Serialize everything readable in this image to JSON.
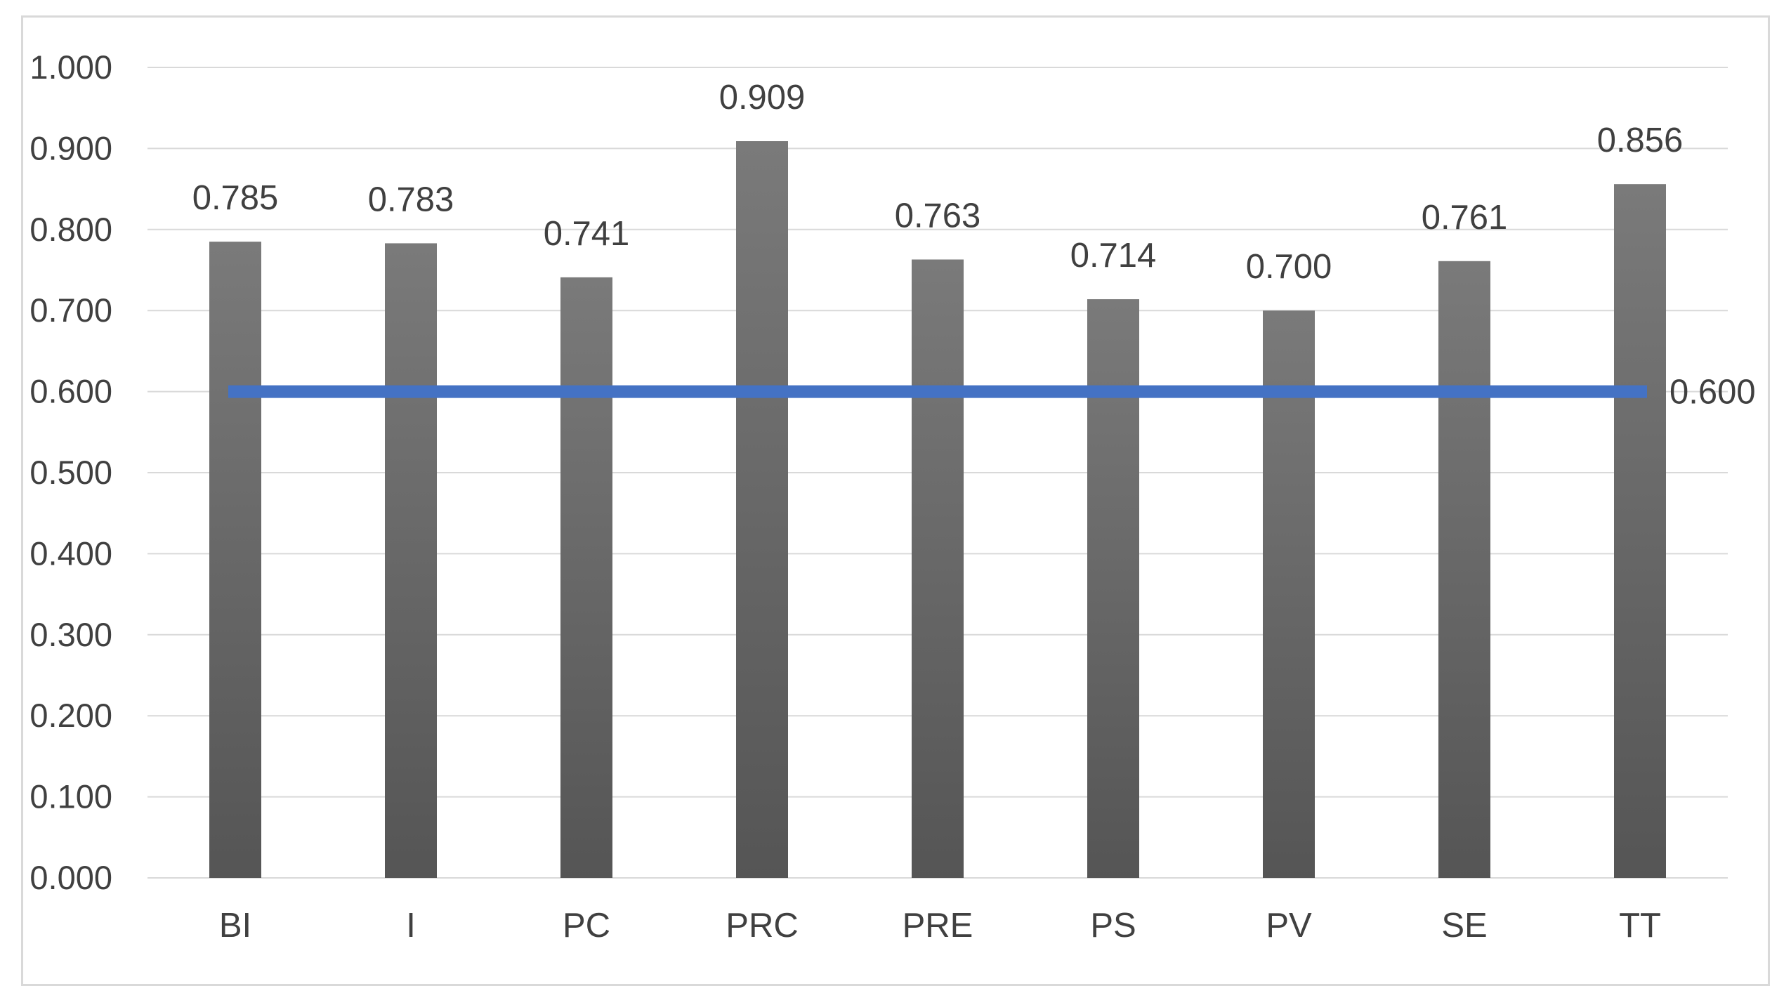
{
  "chart_data": {
    "type": "bar",
    "title": "",
    "xlabel": "",
    "ylabel": "",
    "categories": [
      "BI",
      "I",
      "PC",
      "PRC",
      "PRE",
      "PS",
      "PV",
      "SE",
      "TT"
    ],
    "series": [
      {
        "values": [
          0.785,
          0.783,
          0.741,
          0.909,
          0.763,
          0.714,
          0.7,
          0.761,
          0.856
        ],
        "data_labels": [
          "0.785",
          "0.783",
          "0.741",
          "0.909",
          "0.763",
          "0.714",
          "0.700",
          "0.761",
          "0.856"
        ],
        "color": "#595959",
        "style": "gradient-gray"
      }
    ],
    "threshold_line": {
      "value": 0.6,
      "label": "0.600",
      "color": "#4472c4"
    },
    "ylim": [
      0,
      1
    ],
    "yticks": [
      "0.000",
      "0.100",
      "0.200",
      "0.300",
      "0.400",
      "0.500",
      "0.600",
      "0.700",
      "0.800",
      "0.900",
      "1.000"
    ],
    "ytick_values": [
      0,
      0.1,
      0.2,
      0.3,
      0.4,
      0.5,
      0.6,
      0.7,
      0.8,
      0.9,
      1.0
    ],
    "grid": true,
    "legend": "none"
  }
}
